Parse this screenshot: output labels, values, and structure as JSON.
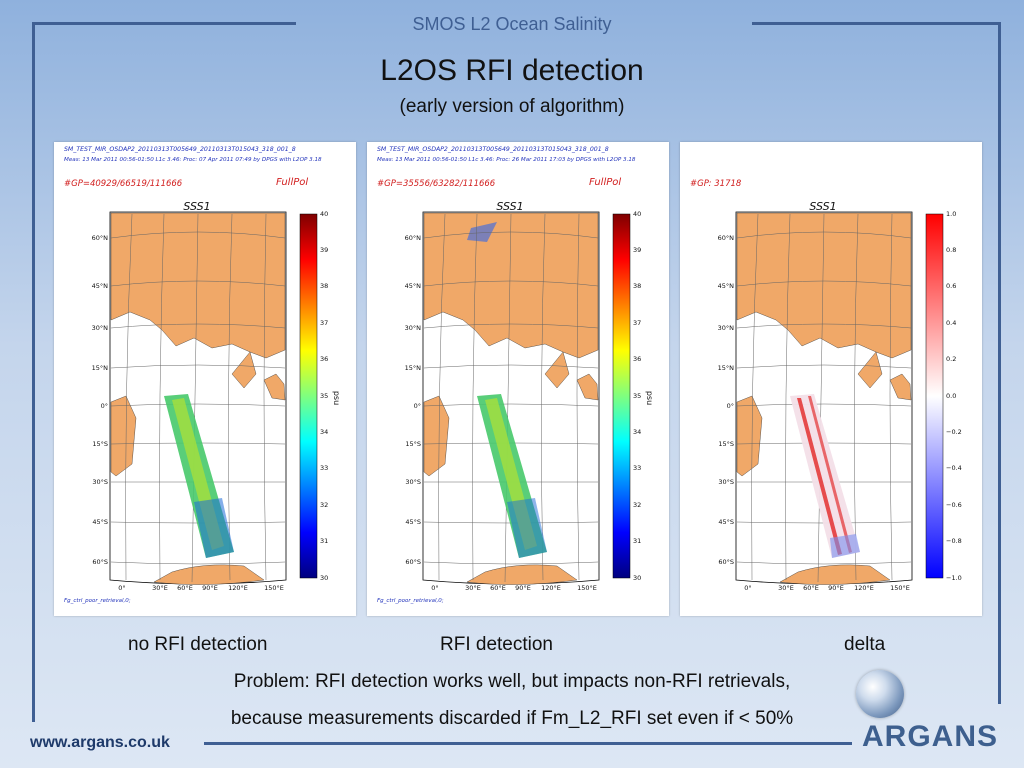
{
  "header": {
    "title": "SMOS L2 Ocean Salinity"
  },
  "slide": {
    "title": "L2OS RFI detection",
    "subtitle": "(early version of algorithm)"
  },
  "panels": [
    {
      "file_line": "SM_TEST_MIR_OSDAP2_20110313T005649_20110313T015043_318_001_8",
      "meas_line": "Meas: 13 Mar 2011 00:56-01:50 L1c 3.46: Proc: 07 Apr 2011 07:49 by DPGS with L2OP 3.18",
      "gp_text": "#GP=40929/66519/111666",
      "mode_text": "FullPol",
      "map_title": "SSS1",
      "colorbar_label": "psu",
      "colorbar_ticks": [
        "40",
        "39",
        "38",
        "37",
        "36",
        "35",
        "34",
        "33",
        "32",
        "31",
        "30"
      ],
      "footnote": "Fg_ctrl_poor_retrieval,0;",
      "caption": "no RFI detection"
    },
    {
      "file_line": "SM_TEST_MIR_OSDAP2_20110313T005649_20110313T015043_318_001_8",
      "meas_line": "Meas: 13 Mar 2011 00:56-01:50 L1c 3.46: Proc: 26 Mar 2011 17:03 by DPGS with L2OP 3.18",
      "gp_text": "#GP=35556/63282/111666",
      "mode_text": "FullPol",
      "map_title": "SSS1",
      "colorbar_label": "psu",
      "colorbar_ticks": [
        "40",
        "39",
        "38",
        "37",
        "36",
        "35",
        "34",
        "33",
        "32",
        "31",
        "30"
      ],
      "footnote": "Fg_ctrl_poor_retrieval,0;",
      "caption": "RFI detection"
    },
    {
      "file_line": "",
      "meas_line": "",
      "gp_text": "#GP: 31718",
      "mode_text": "",
      "map_title": "SSS1",
      "colorbar_label": "",
      "colorbar_ticks": [
        "1.0",
        "0.8",
        "0.6",
        "0.4",
        "0.2",
        "0.0",
        "−0.2",
        "−0.4",
        "−0.6",
        "−0.8",
        "−1.0"
      ],
      "footnote": "",
      "caption": "delta"
    }
  ],
  "map_axes": {
    "lat_labels": [
      "60°N",
      "45°N",
      "30°N",
      "15°N",
      "0°",
      "15°S",
      "30°S",
      "45°S",
      "60°S"
    ],
    "lon_labels": [
      "0°",
      "30°E",
      "60°E",
      "90°E",
      "120°E",
      "150°E"
    ]
  },
  "body": {
    "line1": "Problem: RFI detection works well, but impacts non-RFI retrievals,",
    "line2": "because measurements discarded if Fm_L2_RFI set even if < 50%"
  },
  "footer": {
    "url": "www.argans.co.uk",
    "logo": "ARGANS"
  },
  "colors": {
    "frame": "#3f5f93",
    "land": "#f0a868",
    "link_text": "#2233bb",
    "red_text": "#d22020"
  }
}
